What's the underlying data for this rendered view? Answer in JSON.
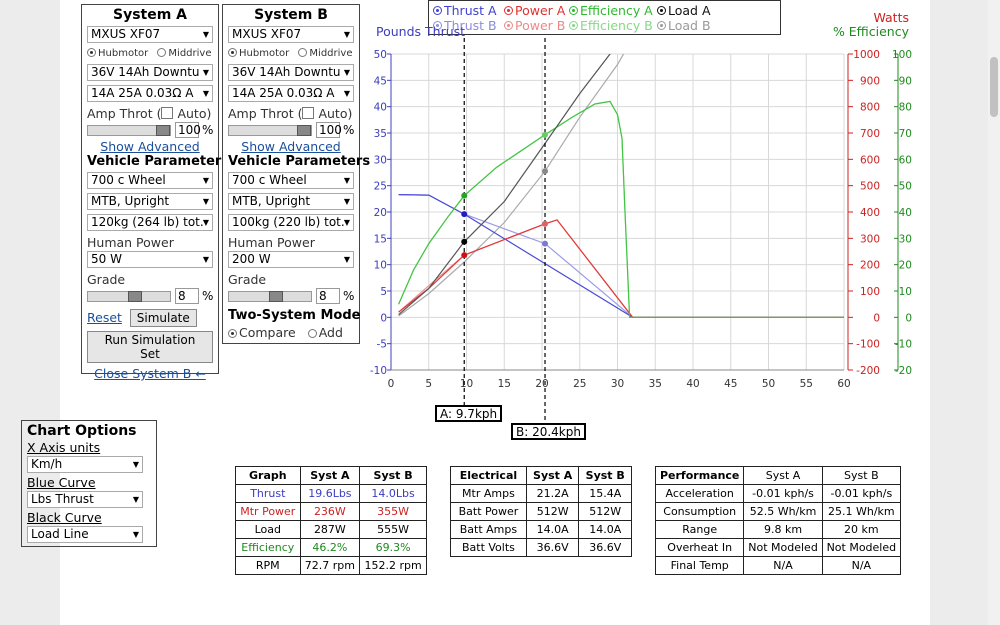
{
  "systemA": {
    "title": "System A",
    "motor": "MXUS XF07",
    "hub_label": "Hubmotor",
    "mid_label": "Middrive",
    "battery": "36V 14Ah Downtu",
    "controller": "14A 25A 0.03Ω A",
    "throttle_label": "Amp Throt (",
    "auto_label": "Auto)",
    "throttle_value": "100",
    "throttle_unit": "%",
    "show_advanced": "Show Advanced",
    "vehicle_label": "Vehicle Parameters",
    "wheel": "700 c  Wheel",
    "bike_type": "MTB, Upright",
    "weight": "120kg (264 lb) tot.",
    "human_power_label": "Human Power",
    "human_power": "50 W",
    "grade_label": "Grade",
    "grade_value": "8",
    "grade_unit": "%",
    "reset": "Reset",
    "simulate": "Simulate",
    "run_sim_set": "Run Simulation Set",
    "close_b": "Close System B ←"
  },
  "systemB": {
    "title": "System B",
    "motor": "MXUS XF07",
    "hub_label": "Hubmotor",
    "mid_label": "Middrive",
    "battery": "36V 14Ah Downtu",
    "controller": "14A 25A 0.03Ω A",
    "throttle_label": "Amp Throt (",
    "auto_label": "Auto)",
    "throttle_value": "100",
    "throttle_unit": "%",
    "show_advanced": "Show Advanced",
    "vehicle_label": "Vehicle Parameters",
    "wheel": "700 c  Wheel",
    "bike_type": "MTB, Upright",
    "weight": "100kg (220 lb) tot.",
    "human_power_label": "Human Power",
    "human_power": "200 W",
    "grade_label": "Grade",
    "grade_value": "8",
    "grade_unit": "%",
    "two_system_label": "Two-System Mode",
    "compare": "Compare",
    "add": "Add"
  },
  "chart_options": {
    "title": "Chart Options",
    "x_axis_label": "X Axis units",
    "x_axis_value": "Km/h",
    "blue_curve_label": "Blue Curve",
    "blue_curve_value": "Lbs Thrust",
    "black_curve_label": "Black Curve",
    "black_curve_value": "Load Line"
  },
  "legend": {
    "thrust_a": "Thrust A",
    "power_a": "Power A",
    "efficiency_a": "Efficiency A",
    "load_a": "Load A",
    "thrust_b": "Thrust B",
    "power_b": "Power B",
    "efficiency_b": "Efficiency B",
    "load_b": "Load B"
  },
  "axis_titles": {
    "left": "Pounds Thrust",
    "right_watts": "Watts",
    "right_eff": "% Efficiency"
  },
  "colors": {
    "thrust": "#4040d0",
    "power": "#e03030",
    "efficiency": "#2db82d",
    "load": "#111111",
    "watts_axis": "#cc2222",
    "eff_axis": "#1f8a1f",
    "thrust_axis": "#3c3cbe"
  },
  "markers": {
    "a_label": "A: 9.7kph",
    "b_label": "B: 20.4kph",
    "a_speed": 9.7,
    "b_speed": 20.4
  },
  "chart_data": {
    "type": "line",
    "xlabel": "",
    "x_range": [
      0,
      60
    ],
    "x_ticks": [
      0,
      5,
      10,
      15,
      20,
      25,
      30,
      35,
      40,
      45,
      50,
      55,
      60
    ],
    "y_left": {
      "label": "Pounds Thrust",
      "range": [
        -10,
        50
      ],
      "ticks": [
        -10,
        -5,
        0,
        5,
        10,
        15,
        20,
        25,
        30,
        35,
        40,
        45,
        50
      ]
    },
    "y_right_watts": {
      "label": "Watts",
      "range": [
        -200,
        1000
      ],
      "ticks": [
        -200,
        -100,
        0,
        100,
        200,
        300,
        400,
        500,
        600,
        700,
        800,
        900,
        1000
      ]
    },
    "y_right_eff": {
      "label": "% Efficiency",
      "range": [
        -20,
        100
      ],
      "ticks": [
        -20,
        -10,
        0,
        10,
        20,
        30,
        40,
        50,
        60,
        70,
        80,
        90,
        100
      ]
    },
    "grid": true,
    "legend": "top",
    "series": [
      {
        "name": "Thrust A",
        "axis": "left",
        "points": [
          [
            1,
            23.3
          ],
          [
            5,
            23.2
          ],
          [
            9.7,
            19.6
          ],
          [
            32,
            0
          ],
          [
            60,
            0
          ]
        ]
      },
      {
        "name": "Thrust B",
        "axis": "left",
        "points": [
          [
            1,
            23.3
          ],
          [
            5,
            23.2
          ],
          [
            9.7,
            19.6
          ],
          [
            20.4,
            14.0
          ],
          [
            32,
            0
          ],
          [
            60,
            0
          ]
        ]
      },
      {
        "name": "Power A",
        "axis": "watts",
        "points": [
          [
            1,
            20
          ],
          [
            5,
            110
          ],
          [
            9.7,
            236
          ],
          [
            20.4,
            355
          ],
          [
            22,
            370
          ],
          [
            32,
            0
          ],
          [
            60,
            0
          ]
        ]
      },
      {
        "name": "Power B",
        "axis": "watts",
        "points": [
          [
            1,
            20
          ],
          [
            5,
            120
          ],
          [
            9.7,
            236
          ],
          [
            20.4,
            355
          ],
          [
            22,
            370
          ],
          [
            32,
            0
          ],
          [
            60,
            0
          ]
        ]
      },
      {
        "name": "Efficiency A",
        "axis": "eff",
        "points": [
          [
            1,
            5
          ],
          [
            3,
            18
          ],
          [
            5,
            28
          ],
          [
            7.5,
            38
          ],
          [
            9.7,
            46.2
          ],
          [
            14,
            57
          ],
          [
            20.4,
            69.3
          ],
          [
            24,
            76
          ],
          [
            27,
            81
          ],
          [
            29,
            82
          ],
          [
            30,
            77
          ],
          [
            30.6,
            68
          ],
          [
            31,
            40
          ],
          [
            31.6,
            0
          ],
          [
            60,
            0
          ]
        ]
      },
      {
        "name": "Efficiency B",
        "axis": "eff",
        "points": [
          [
            1,
            5
          ],
          [
            3,
            18
          ],
          [
            5,
            28
          ],
          [
            7.5,
            38
          ],
          [
            9.7,
            46.2
          ],
          [
            14,
            57
          ],
          [
            20.4,
            69.3
          ],
          [
            24,
            76
          ],
          [
            27,
            81
          ],
          [
            29,
            82
          ],
          [
            30,
            77
          ],
          [
            30.6,
            68
          ],
          [
            31,
            40
          ],
          [
            31.6,
            0
          ],
          [
            60,
            0
          ]
        ]
      },
      {
        "name": "Load A",
        "axis": "watts",
        "points": [
          [
            1,
            10
          ],
          [
            5,
            110
          ],
          [
            9.7,
            287
          ],
          [
            15,
            440
          ],
          [
            20.4,
            660
          ],
          [
            25,
            850
          ],
          [
            29,
            1000
          ],
          [
            30.5,
            1070
          ]
        ]
      },
      {
        "name": "Load B",
        "axis": "watts",
        "points": [
          [
            1,
            5
          ],
          [
            5,
            90
          ],
          [
            9.7,
            210
          ],
          [
            15,
            360
          ],
          [
            20.4,
            555
          ],
          [
            25,
            760
          ],
          [
            30,
            960
          ],
          [
            32,
            1060
          ]
        ]
      }
    ]
  },
  "graph_table": {
    "headers": [
      "Graph",
      "Syst A",
      "Syst B"
    ],
    "rows": [
      [
        "Thrust",
        "19.6Lbs",
        "14.0Lbs"
      ],
      [
        "Mtr Power",
        "236W",
        "355W"
      ],
      [
        "Load",
        "287W",
        "555W"
      ],
      [
        "Efficiency",
        "46.2%",
        "69.3%"
      ],
      [
        "RPM",
        "72.7 rpm",
        "152.2 rpm"
      ]
    ]
  },
  "electrical_table": {
    "headers": [
      "Electrical",
      "Syst A",
      "Syst B"
    ],
    "rows": [
      [
        "Mtr Amps",
        "21.2A",
        "15.4A"
      ],
      [
        "Batt Power",
        "512W",
        "512W"
      ],
      [
        "Batt Amps",
        "14.0A",
        "14.0A"
      ],
      [
        "Batt Volts",
        "36.6V",
        "36.6V"
      ]
    ]
  },
  "performance_table": {
    "headers": [
      "Performance",
      "Syst A",
      "Syst B"
    ],
    "rows": [
      [
        "Acceleration",
        "-0.01 kph/s",
        "-0.01 kph/s"
      ],
      [
        "Consumption",
        "52.5 Wh/km",
        "25.1 Wh/km"
      ],
      [
        "Range",
        "9.8 km",
        "20 km"
      ],
      [
        "Overheat In",
        "Not Modeled",
        "Not Modeled"
      ],
      [
        "Final Temp",
        "N/A",
        "N/A"
      ]
    ]
  }
}
